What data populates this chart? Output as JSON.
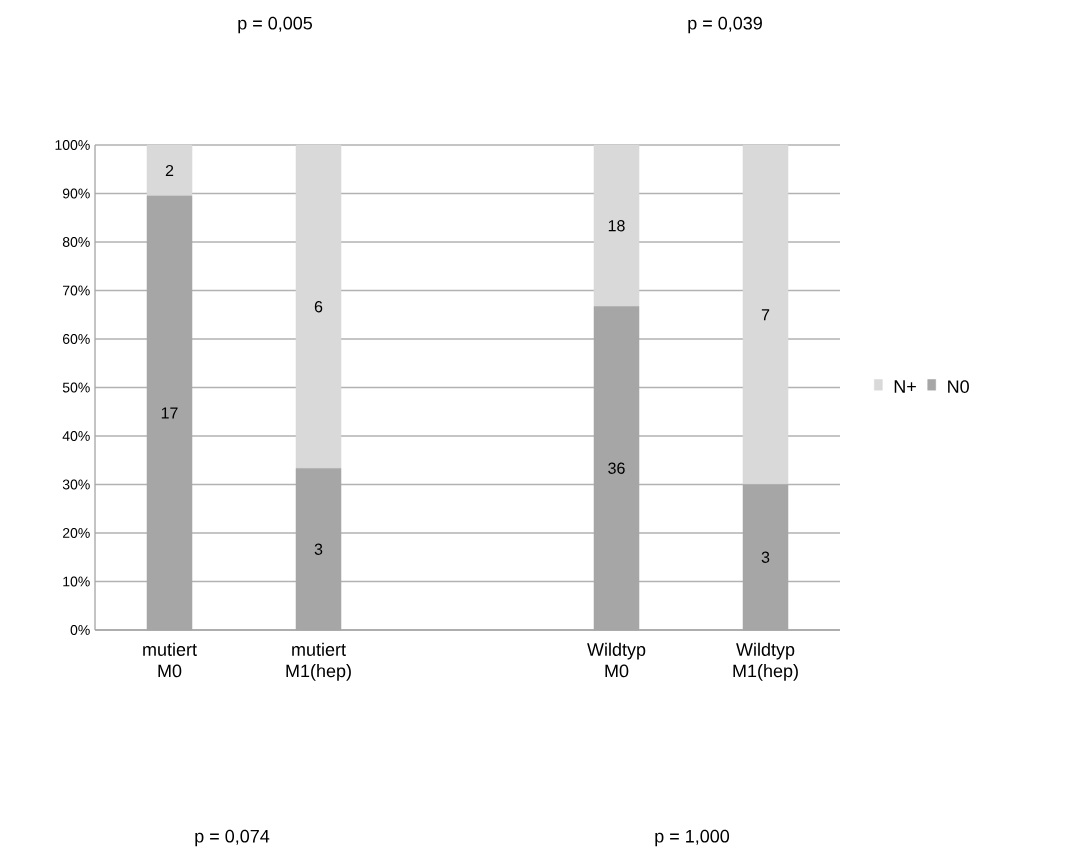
{
  "chart_data": {
    "type": "bar",
    "stacked": true,
    "categories": [
      "mutiert M0",
      "mutiert M1(hep)",
      null,
      "Wildtyp M0",
      "Wildtyp M1(hep)"
    ],
    "series": [
      {
        "name": "N0",
        "color": "#a6a6a6",
        "values": [
          89.5,
          33.3,
          null,
          66.7,
          30
        ]
      },
      {
        "name": "N+",
        "color": "#d9d9d9",
        "values": [
          10.5,
          66.7,
          null,
          33.3,
          70
        ]
      }
    ],
    "ylim": [
      0,
      100
    ],
    "yticks": [
      {
        "value": 0,
        "label": "0%"
      },
      {
        "value": 10,
        "label": "10%"
      },
      {
        "value": 20,
        "label": "20%"
      },
      {
        "value": 30,
        "label": "30%"
      },
      {
        "value": 40,
        "label": "40%"
      },
      {
        "value": 50,
        "label": "50%"
      },
      {
        "value": 60,
        "label": "60%"
      },
      {
        "value": 70,
        "label": "70%"
      },
      {
        "value": 80,
        "label": "80%"
      },
      {
        "value": 90,
        "label": "90%"
      },
      {
        "value": 100,
        "label": "100%"
      }
    ],
    "grid": "y",
    "legend": "right",
    "annotations": [
      "p = 0,005",
      "p = 0,039",
      "p = 0,074",
      "p = 1,000",
      "17",
      "2",
      "3",
      "6",
      "36",
      "18",
      "3",
      "7"
    ]
  }
}
